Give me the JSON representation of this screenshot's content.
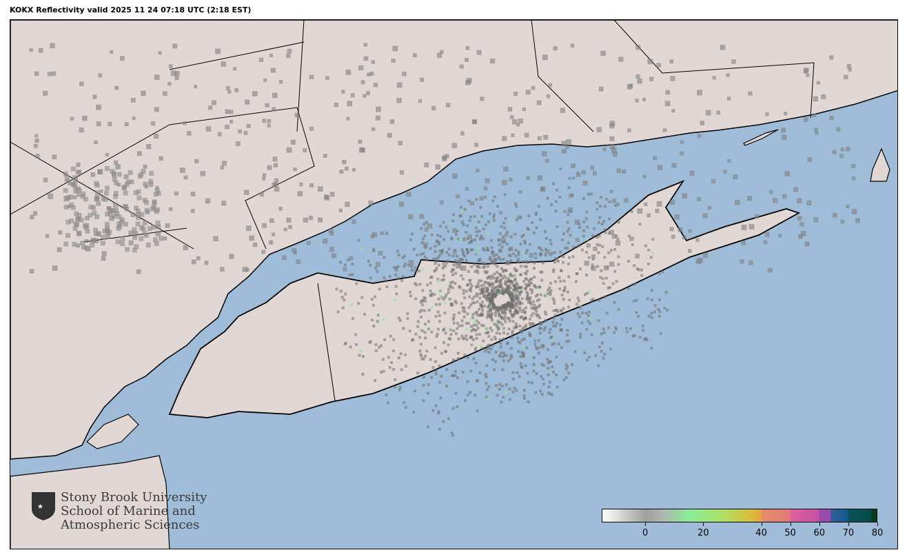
{
  "title": "KOKX Reflectivity valid 2025 11 24 07:18 UTC (2:18 EST)",
  "map": {
    "water_color": "#9fbcd8",
    "land_color": "#e1d7d5",
    "radar_site": "KOKX"
  },
  "logo": {
    "line1": "Stony Brook University",
    "line2": "School of Marine and",
    "line3": "Atmospheric Sciences"
  },
  "colorbar": {
    "range": [
      -15,
      80
    ],
    "ticks": [
      "0",
      "20",
      "40",
      "50",
      "60",
      "70",
      "80"
    ],
    "tick_values": [
      0,
      20,
      40,
      50,
      60,
      70,
      80
    ],
    "stops": [
      {
        "v": -15,
        "c": "#ffffff"
      },
      {
        "v": 0,
        "c": "#a0a0a0"
      },
      {
        "v": 5,
        "c": "#b0b0b0"
      },
      {
        "v": 15,
        "c": "#88ee99"
      },
      {
        "v": 25,
        "c": "#a6e36c"
      },
      {
        "v": 35,
        "c": "#d2c43c"
      },
      {
        "v": 40,
        "c": "#e2a83a"
      },
      {
        "v": 40.1,
        "c": "#e68c6a"
      },
      {
        "v": 50,
        "c": "#e27a78"
      },
      {
        "v": 50.1,
        "c": "#de609c"
      },
      {
        "v": 60,
        "c": "#c84fa6"
      },
      {
        "v": 60.1,
        "c": "#9a4cae"
      },
      {
        "v": 64,
        "c": "#9a4cae"
      },
      {
        "v": 64.1,
        "c": "#3a5a9e"
      },
      {
        "v": 70,
        "c": "#0e5a8e"
      },
      {
        "v": 70.1,
        "c": "#08555a"
      },
      {
        "v": 78,
        "c": "#024c4a"
      },
      {
        "v": 78.1,
        "c": "#063c20"
      },
      {
        "v": 80,
        "c": "#063c20"
      }
    ]
  }
}
